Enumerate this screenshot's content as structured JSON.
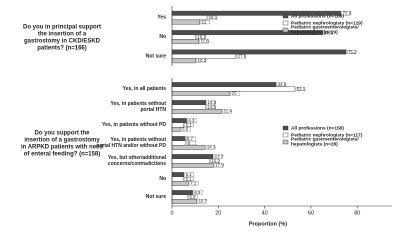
{
  "chart_data": [
    {
      "type": "bar",
      "horizontal": true,
      "title": "Do you in principal support the insertion of a gastrostomy in CKD/ESKD patients? (n=166)",
      "categories": [
        "Yes",
        "No",
        "Not sure"
      ],
      "series": [
        {
          "name": "All professions (n=166)",
          "color": "#4d4d4d",
          "values": [
            72.9,
            65.1,
            75.2
          ]
        },
        {
          "name": "Pediatric nephrologists (n=129)",
          "color": "#ffffff",
          "values": [
            15.1,
            10.2,
            27.6
          ]
        },
        {
          "name": "Pediatric gastroenterologists/ hepatologists (n=29)",
          "color": "#c4c4c4",
          "values": [
            12.0,
            11.6,
            10.3
          ]
        }
      ],
      "xlim": [
        0,
        95
      ],
      "legend": "upper right"
    },
    {
      "type": "bar",
      "horizontal": true,
      "title": "Do you support the insertion of a gastrostomy in ARPKD patients with need of enteral feeding? (n=158)",
      "categories": [
        "Yes, in all patients",
        "Yes, in patients without portal HTN",
        "Yes, in patients without PD",
        "Yes, in patients without portal HTN and/or without PD",
        "Yes, but other/additional concerns/contradictions",
        "No",
        "Not sure"
      ],
      "series": [
        {
          "name": "All professions (n=158)",
          "color": "#4d4d4d",
          "values": [
            44.9,
            14.6,
            6.3,
            5.7,
            17.7,
            5.1,
            8.9
          ]
        },
        {
          "name": "Pediatric nephrologists (n=117)",
          "color": "#ffffff",
          "values": [
            53.1,
            14.5,
            5.1,
            6.0,
            16.2,
            5.1,
            6.8
          ]
        },
        {
          "name": "Pediatric gastroenterologists/ hepatologists (n=28)",
          "color": "#c4c4c4",
          "values": [
            25.0,
            21.4,
            3.6,
            14.3,
            17.9,
            7.1,
            10.7
          ]
        }
      ],
      "xlim": [
        0,
        95
      ],
      "xticks": [
        0,
        20,
        40,
        60,
        80
      ],
      "xlabel": "Proportion (%)",
      "legend": "center right"
    }
  ]
}
